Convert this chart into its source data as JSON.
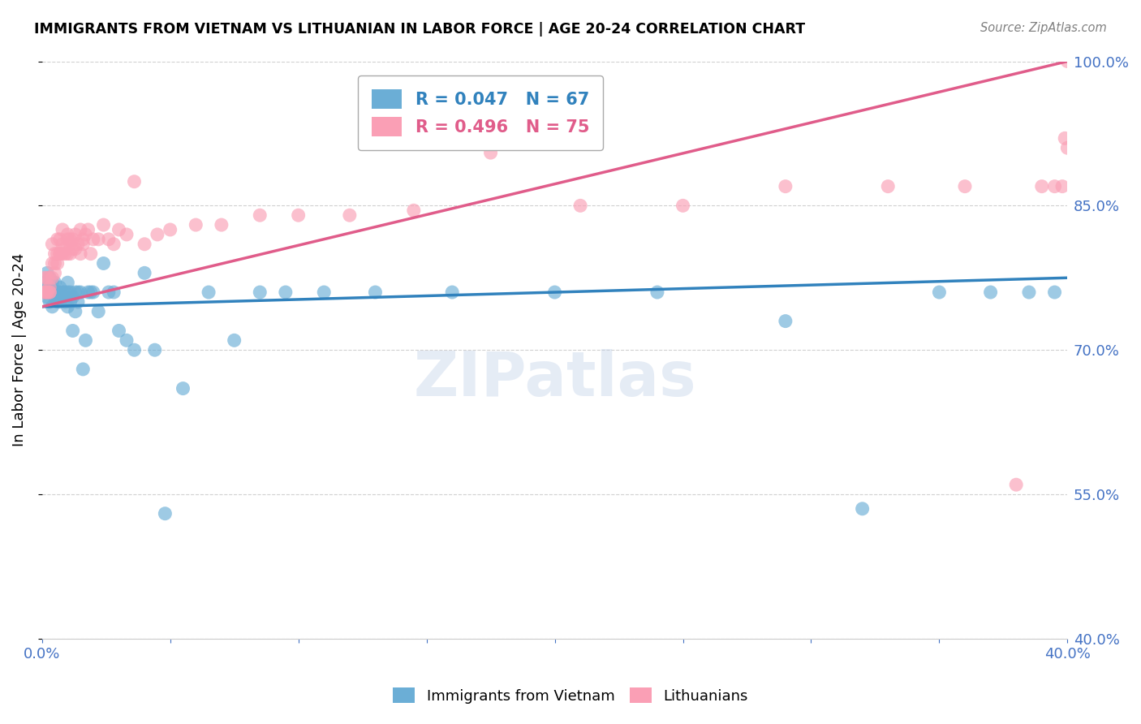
{
  "title": "IMMIGRANTS FROM VIETNAM VS LITHUANIAN IN LABOR FORCE | AGE 20-24 CORRELATION CHART",
  "source": "Source: ZipAtlas.com",
  "ylabel": "In Labor Force | Age 20-24",
  "legend_blue": "Immigrants from Vietnam",
  "legend_pink": "Lithuanians",
  "blue_R": 0.047,
  "blue_N": 67,
  "pink_R": 0.496,
  "pink_N": 75,
  "xlim": [
    0.0,
    0.4
  ],
  "ylim": [
    0.4,
    1.0
  ],
  "yticks": [
    0.4,
    0.55,
    0.7,
    0.85,
    1.0
  ],
  "xticks_positions": [
    0.0,
    0.4
  ],
  "xticks_labels": [
    "0.0%",
    "40.0%"
  ],
  "blue_color": "#6baed6",
  "pink_color": "#fa9fb5",
  "blue_line_color": "#3182bd",
  "pink_line_color": "#e05c8a",
  "watermark": "ZIPatlas",
  "background_color": "#ffffff",
  "grid_color": "#d0d0d0",
  "axis_label_color": "#4472c4",
  "blue_x": [
    0.001,
    0.001,
    0.002,
    0.002,
    0.002,
    0.003,
    0.003,
    0.003,
    0.004,
    0.004,
    0.004,
    0.005,
    0.005,
    0.005,
    0.006,
    0.006,
    0.006,
    0.007,
    0.007,
    0.007,
    0.008,
    0.008,
    0.009,
    0.009,
    0.01,
    0.01,
    0.01,
    0.011,
    0.011,
    0.012,
    0.012,
    0.013,
    0.013,
    0.014,
    0.014,
    0.015,
    0.016,
    0.017,
    0.018,
    0.019,
    0.02,
    0.022,
    0.024,
    0.026,
    0.028,
    0.03,
    0.033,
    0.036,
    0.04,
    0.044,
    0.048,
    0.055,
    0.065,
    0.075,
    0.085,
    0.095,
    0.11,
    0.13,
    0.16,
    0.2,
    0.24,
    0.29,
    0.32,
    0.35,
    0.37,
    0.385,
    0.395
  ],
  "blue_y": [
    0.76,
    0.77,
    0.755,
    0.765,
    0.78,
    0.76,
    0.75,
    0.775,
    0.76,
    0.745,
    0.77,
    0.755,
    0.76,
    0.77,
    0.76,
    0.75,
    0.76,
    0.76,
    0.75,
    0.765,
    0.755,
    0.76,
    0.75,
    0.76,
    0.76,
    0.745,
    0.77,
    0.75,
    0.76,
    0.72,
    0.755,
    0.76,
    0.74,
    0.76,
    0.75,
    0.76,
    0.68,
    0.71,
    0.76,
    0.76,
    0.76,
    0.74,
    0.79,
    0.76,
    0.76,
    0.72,
    0.71,
    0.7,
    0.78,
    0.7,
    0.53,
    0.66,
    0.76,
    0.71,
    0.76,
    0.76,
    0.76,
    0.76,
    0.76,
    0.76,
    0.76,
    0.73,
    0.535,
    0.76,
    0.76,
    0.76,
    0.76
  ],
  "pink_x": [
    0.001,
    0.001,
    0.001,
    0.002,
    0.002,
    0.002,
    0.003,
    0.003,
    0.003,
    0.003,
    0.004,
    0.004,
    0.004,
    0.005,
    0.005,
    0.005,
    0.006,
    0.006,
    0.006,
    0.007,
    0.007,
    0.007,
    0.008,
    0.008,
    0.008,
    0.009,
    0.009,
    0.01,
    0.01,
    0.01,
    0.011,
    0.011,
    0.011,
    0.012,
    0.012,
    0.013,
    0.013,
    0.014,
    0.015,
    0.015,
    0.016,
    0.016,
    0.017,
    0.018,
    0.019,
    0.02,
    0.022,
    0.024,
    0.026,
    0.028,
    0.03,
    0.033,
    0.036,
    0.04,
    0.045,
    0.05,
    0.06,
    0.07,
    0.085,
    0.1,
    0.12,
    0.145,
    0.175,
    0.21,
    0.25,
    0.29,
    0.33,
    0.36,
    0.38,
    0.39,
    0.395,
    0.398,
    0.399,
    0.4,
    0.4
  ],
  "pink_y": [
    0.76,
    0.775,
    0.76,
    0.775,
    0.76,
    0.76,
    0.765,
    0.76,
    0.775,
    0.76,
    0.775,
    0.79,
    0.81,
    0.79,
    0.78,
    0.8,
    0.79,
    0.8,
    0.815,
    0.8,
    0.815,
    0.8,
    0.81,
    0.8,
    0.825,
    0.805,
    0.8,
    0.815,
    0.8,
    0.82,
    0.81,
    0.8,
    0.815,
    0.805,
    0.815,
    0.82,
    0.805,
    0.81,
    0.825,
    0.8,
    0.815,
    0.81,
    0.82,
    0.825,
    0.8,
    0.815,
    0.815,
    0.83,
    0.815,
    0.81,
    0.825,
    0.82,
    0.875,
    0.81,
    0.82,
    0.825,
    0.83,
    0.83,
    0.84,
    0.84,
    0.84,
    0.845,
    0.905,
    0.85,
    0.85,
    0.87,
    0.87,
    0.87,
    0.56,
    0.87,
    0.87,
    0.87,
    0.92,
    1.0,
    0.91
  ],
  "blue_trend_x": [
    0.0,
    0.4
  ],
  "blue_trend_y": [
    0.745,
    0.775
  ],
  "pink_trend_x": [
    0.0,
    0.4
  ],
  "pink_trend_y": [
    0.745,
    1.0
  ]
}
